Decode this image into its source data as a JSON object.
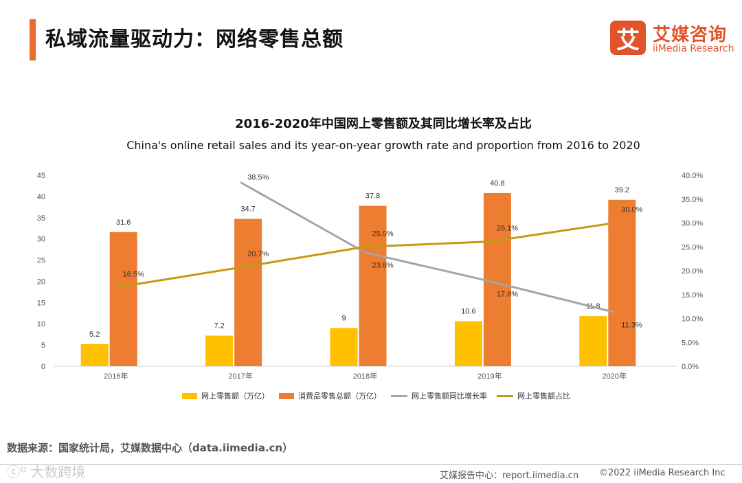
{
  "header": {
    "title": "私域流量驱动力：网络零售总额",
    "logo_mark": "艾",
    "logo_cn": "艾媒咨询",
    "logo_en": "iiMedia Research"
  },
  "colors": {
    "online_retail": "#ffc000",
    "consumer_goods": "#ed7d31",
    "growth_rate": "#a5a5a5",
    "share": "#c49a12",
    "accent": "#ee6b2f"
  },
  "chart_data": {
    "type": "bar",
    "title": "2016-2020年中国网上零售额及其同比增长率及占比",
    "subtitle": "China's online retail sales and its year-on-year growth rate and proportion from 2016  to 2020",
    "categories": [
      "2016年",
      "2017年",
      "2018年",
      "2019年",
      "2020年"
    ],
    "ylim": [
      0,
      45
    ],
    "y_ticks": [
      "0",
      "5",
      "10",
      "15",
      "20",
      "25",
      "30",
      "35",
      "40",
      "45"
    ],
    "y2lim": [
      0,
      40
    ],
    "y2_ticks": [
      "0.0%",
      "5.0%",
      "10.0%",
      "15.0%",
      "20.0%",
      "25.0%",
      "30.0%",
      "35.0%",
      "40.0%"
    ],
    "grid": false,
    "legend_position": "bottom",
    "series": [
      {
        "name": "网上零售额（万亿）",
        "type": "bar",
        "axis": "left",
        "values": [
          5.2,
          7.2,
          9,
          10.6,
          11.8
        ],
        "labels": [
          "5.2",
          "7.2",
          "9",
          "10.6",
          "11.8"
        ]
      },
      {
        "name": "消费品零售总额（万亿）",
        "type": "bar",
        "axis": "left",
        "values": [
          31.6,
          34.7,
          37.8,
          40.8,
          39.2
        ],
        "labels": [
          "31.6",
          "34.7",
          "37.8",
          "40.8",
          "39.2"
        ]
      },
      {
        "name": "网上零售额同比增长率",
        "type": "line",
        "axis": "right",
        "values": [
          null,
          38.5,
          23.8,
          17.8,
          11.3
        ],
        "labels": [
          "",
          "38.5%",
          "23.8%",
          "17.8%",
          "11.3%"
        ]
      },
      {
        "name": "网上零售额占比",
        "type": "line",
        "axis": "right",
        "values": [
          16.5,
          20.7,
          25.0,
          26.1,
          30.0
        ],
        "labels": [
          "16.5%",
          "20.7%",
          "25.0%",
          "26.1%",
          "30.0%"
        ]
      }
    ]
  },
  "footer": {
    "source": "数据来源：国家统计局，艾媒数据中心（data.iimedia.cn）",
    "report": "艾媒报告中心：report.iimedia.cn",
    "copyright": "©2022  iiMedia Research  Inc",
    "watermark": "ⓒ⁰ 大数跨境"
  }
}
